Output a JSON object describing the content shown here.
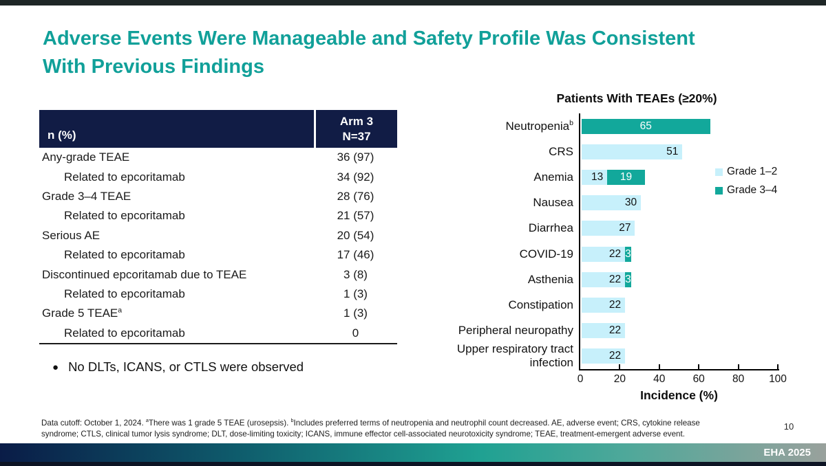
{
  "slide": {
    "title": "Adverse Events Were Manageable and Safety Profile Was Consistent With Previous Findings",
    "bullet": "No DLTs, ICANS, or CTLS were observed",
    "page_number": "10",
    "conference": "EHA 2025"
  },
  "colors": {
    "accent_teal": "#11A099",
    "grade12_cyan": "#C7F0FB",
    "grade34_teal": "#12A89B",
    "header_navy": "#111C45"
  },
  "table": {
    "header": {
      "col1": "n (%)",
      "col2_line1": "Arm 3",
      "col2_line2": "N=37"
    },
    "rows": [
      {
        "label": "Any-grade TEAE",
        "sup": "",
        "value": "36 (97)",
        "indent": false
      },
      {
        "label": "Related to epcoritamab",
        "sup": "",
        "value": "34 (92)",
        "indent": true
      },
      {
        "label": "Grade 3–4 TEAE",
        "sup": "",
        "value": "28 (76)",
        "indent": false
      },
      {
        "label": "Related to epcoritamab",
        "sup": "",
        "value": "21 (57)",
        "indent": true
      },
      {
        "label": "Serious AE",
        "sup": "",
        "value": "20 (54)",
        "indent": false
      },
      {
        "label": "Related to epcoritamab",
        "sup": "",
        "value": "17 (46)",
        "indent": true
      },
      {
        "label": "Discontinued epcoritamab due to TEAE",
        "sup": "",
        "value": "3 (8)",
        "indent": false
      },
      {
        "label": "Related to epcoritamab",
        "sup": "",
        "value": "1 (3)",
        "indent": true
      },
      {
        "label": "Grade 5 TEAE",
        "sup": "a",
        "value": "1 (3)",
        "indent": false
      },
      {
        "label": "Related to epcoritamab",
        "sup": "",
        "value": "0",
        "indent": true
      }
    ]
  },
  "chart_data": {
    "type": "bar",
    "orientation": "horizontal",
    "stacked": true,
    "title": "Patients With TEAEs (≥20%)",
    "xlabel": "Incidence (%)",
    "xlim": [
      0,
      100
    ],
    "x_ticks": [
      0,
      20,
      40,
      60,
      80,
      100
    ],
    "grid": false,
    "legend_position": "right",
    "categories": [
      "Neutropenia",
      "CRS",
      "Anemia",
      "Nausea",
      "Diarrhea",
      "COVID-19",
      "Asthenia",
      "Constipation",
      "Peripheral neuropathy",
      "Upper respiratory tract infection"
    ],
    "category_sups": [
      "b",
      "",
      "",
      "",
      "",
      "",
      "",
      "",
      "",
      ""
    ],
    "series": [
      {
        "name": "Grade 1–2",
        "color": "#C7F0FB",
        "values": [
          0,
          51,
          13,
          30,
          27,
          22,
          22,
          22,
          22,
          22
        ]
      },
      {
        "name": "Grade 3–4",
        "color": "#12A89B",
        "values": [
          65,
          0,
          19,
          0,
          0,
          3,
          3,
          0,
          0,
          0
        ]
      }
    ]
  },
  "footnote": {
    "parts": [
      {
        "text": "Data cutoff: October 1, 2024. "
      },
      {
        "sup": "a"
      },
      {
        "text": "There was 1 grade 5 TEAE (urosepsis). "
      },
      {
        "sup": "b"
      },
      {
        "text": "Includes preferred terms of neutropenia and neutrophil count decreased. AE, adverse event; CRS, cytokine release syndrome; CTLS, clinical tumor lysis syndrome; DLT, dose-limiting toxicity; ICANS, immune effector cell-associated neurotoxicity syndrome; TEAE, treatment-emergent adverse event."
      }
    ]
  }
}
